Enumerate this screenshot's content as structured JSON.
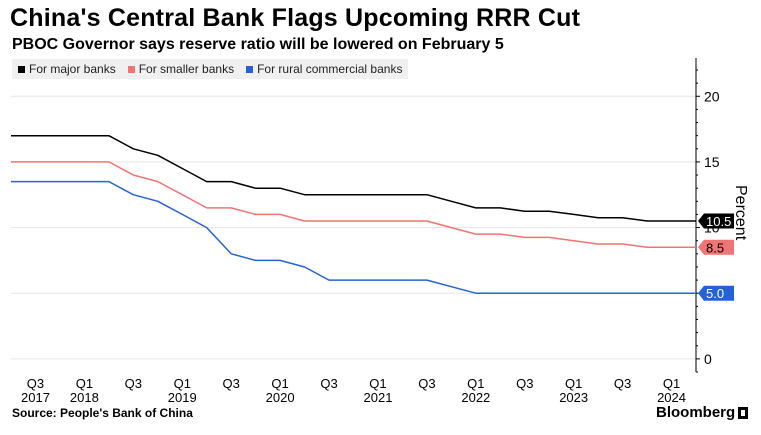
{
  "chart_data": {
    "type": "line",
    "title": "China's Central Bank Flags Upcoming RRR Cut",
    "subtitle": "PBOC Governor says reserve ratio will be lowered on February 5",
    "ylabel": "Percent",
    "ylim": [
      -1,
      22
    ],
    "yticks": [
      0,
      5,
      10,
      15,
      20
    ],
    "xlim": [
      2017.25,
      2024.25
    ],
    "xticks": [
      {
        "x": 2017.5,
        "quarter": "Q3",
        "year": "2017"
      },
      {
        "x": 2018.0,
        "quarter": "Q1",
        "year": "2018"
      },
      {
        "x": 2018.5,
        "quarter": "Q3",
        "year": ""
      },
      {
        "x": 2019.0,
        "quarter": "Q1",
        "year": "2019"
      },
      {
        "x": 2019.5,
        "quarter": "Q3",
        "year": ""
      },
      {
        "x": 2020.0,
        "quarter": "Q1",
        "year": "2020"
      },
      {
        "x": 2020.5,
        "quarter": "Q3",
        "year": ""
      },
      {
        "x": 2021.0,
        "quarter": "Q1",
        "year": "2021"
      },
      {
        "x": 2021.5,
        "quarter": "Q3",
        "year": ""
      },
      {
        "x": 2022.0,
        "quarter": "Q1",
        "year": "2022"
      },
      {
        "x": 2022.5,
        "quarter": "Q3",
        "year": ""
      },
      {
        "x": 2023.0,
        "quarter": "Q1",
        "year": "2023"
      },
      {
        "x": 2023.5,
        "quarter": "Q3",
        "year": ""
      },
      {
        "x": 2024.0,
        "quarter": "Q1",
        "year": "2024"
      }
    ],
    "grid": true,
    "legend_position": "top-left",
    "series": [
      {
        "name": "For major banks",
        "color": "#000000",
        "end_label": "10.5",
        "points": [
          [
            2017.25,
            17.0
          ],
          [
            2018.25,
            17.0
          ],
          [
            2018.5,
            16.0
          ],
          [
            2018.75,
            15.5
          ],
          [
            2019.0,
            14.5
          ],
          [
            2019.25,
            13.5
          ],
          [
            2019.5,
            13.5
          ],
          [
            2019.75,
            13.0
          ],
          [
            2020.0,
            13.0
          ],
          [
            2020.25,
            12.5
          ],
          [
            2020.5,
            12.5
          ],
          [
            2021.25,
            12.5
          ],
          [
            2021.5,
            12.5
          ],
          [
            2021.75,
            12.0
          ],
          [
            2022.0,
            11.5
          ],
          [
            2022.25,
            11.5
          ],
          [
            2022.5,
            11.25
          ],
          [
            2022.75,
            11.25
          ],
          [
            2023.0,
            11.0
          ],
          [
            2023.25,
            10.75
          ],
          [
            2023.5,
            10.75
          ],
          [
            2023.75,
            10.5
          ],
          [
            2024.25,
            10.5
          ]
        ]
      },
      {
        "name": "For smaller banks",
        "color": "#f07474",
        "end_label": "8.5",
        "points": [
          [
            2017.25,
            15.0
          ],
          [
            2018.25,
            15.0
          ],
          [
            2018.5,
            14.0
          ],
          [
            2018.75,
            13.5
          ],
          [
            2019.0,
            12.5
          ],
          [
            2019.25,
            11.5
          ],
          [
            2019.5,
            11.5
          ],
          [
            2019.75,
            11.0
          ],
          [
            2020.0,
            11.0
          ],
          [
            2020.25,
            10.5
          ],
          [
            2020.5,
            10.5
          ],
          [
            2021.25,
            10.5
          ],
          [
            2021.5,
            10.5
          ],
          [
            2021.75,
            10.0
          ],
          [
            2022.0,
            9.5
          ],
          [
            2022.25,
            9.5
          ],
          [
            2022.5,
            9.25
          ],
          [
            2022.75,
            9.25
          ],
          [
            2023.0,
            9.0
          ],
          [
            2023.25,
            8.75
          ],
          [
            2023.5,
            8.75
          ],
          [
            2023.75,
            8.5
          ],
          [
            2024.25,
            8.5
          ]
        ]
      },
      {
        "name": "For rural commercial banks",
        "color": "#2563d4",
        "end_label": "5.0",
        "points": [
          [
            2017.25,
            13.5
          ],
          [
            2018.25,
            13.5
          ],
          [
            2018.5,
            12.5
          ],
          [
            2018.75,
            12.0
          ],
          [
            2019.0,
            11.0
          ],
          [
            2019.25,
            10.0
          ],
          [
            2019.5,
            8.0
          ],
          [
            2019.75,
            7.5
          ],
          [
            2020.0,
            7.5
          ],
          [
            2020.25,
            7.0
          ],
          [
            2020.5,
            6.0
          ],
          [
            2021.25,
            6.0
          ],
          [
            2021.5,
            6.0
          ],
          [
            2021.75,
            5.5
          ],
          [
            2022.0,
            5.0
          ],
          [
            2024.25,
            5.0
          ]
        ]
      }
    ]
  },
  "footer": {
    "source": "Source: People's Bank of China",
    "brand": "Bloomberg",
    "brand_mark_icon": "bloomberg-terminal-icon"
  }
}
